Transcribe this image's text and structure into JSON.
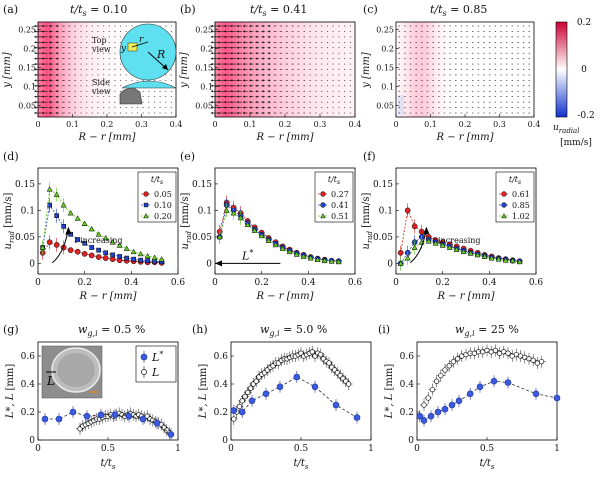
{
  "figure": {
    "colorbar": {
      "labels": [
        "0.2",
        "0",
        "-0.2"
      ],
      "unit_symbol": "u",
      "unit_sub": "radial",
      "unit": "[mm/s]",
      "colors": [
        "#cc0033",
        "#ffffff",
        "#1133cc"
      ],
      "range": [
        -0.2,
        0.2
      ]
    }
  },
  "chart_data": [
    {
      "id": "a",
      "type": "heatmap",
      "panel_label": "(a)",
      "title": "t/t_s = 0.10",
      "title_prefix": "t/t",
      "title_sub": "s",
      "title_value": " = 0.10",
      "xlabel": "R − r [mm]",
      "ylabel": "y [mm]",
      "xlim": [
        0,
        0.4
      ],
      "ylim": [
        0.02,
        0.27
      ],
      "xticks": [
        0,
        0.1,
        0.2,
        0.3,
        0.4
      ],
      "xtick_labels": [
        "0",
        "0.1",
        "0.2",
        "0.3",
        "0.4"
      ],
      "yticks": [
        0.05,
        0.1,
        0.15,
        0.2,
        0.25
      ],
      "ytick_labels": [
        "0.05",
        "0.1",
        "0.15",
        "0.2",
        "0.25"
      ],
      "peak": 0.85,
      "extent": 0.1,
      "has_blue": false,
      "inset": {
        "top_label": "Top view",
        "top_label_1": "Top",
        "top_label_2": "view",
        "side_label_1": "Side",
        "side_label_2": "view",
        "y_label": "y",
        "r_label": "r",
        "R_label": "R"
      }
    },
    {
      "id": "b",
      "type": "heatmap",
      "panel_label": "(b)",
      "title": "t/t_s = 0.41",
      "title_prefix": "t/t",
      "title_sub": "s",
      "title_value": " = 0.41",
      "xlabel": "R − r [mm]",
      "ylabel": "y [mm]",
      "xlim": [
        0,
        0.4
      ],
      "ylim": [
        0.02,
        0.27
      ],
      "xticks": [
        0,
        0.1,
        0.2,
        0.3,
        0.4
      ],
      "xtick_labels": [
        "0",
        "0.1",
        "0.2",
        "0.3",
        "0.4"
      ],
      "yticks": [
        0.05,
        0.1,
        0.15,
        0.2,
        0.25
      ],
      "ytick_labels": [
        "0.05",
        "0.1",
        "0.15",
        "0.2",
        "0.25"
      ],
      "peak": 0.8,
      "extent": 0.25,
      "has_blue": false
    },
    {
      "id": "c",
      "type": "heatmap",
      "panel_label": "(c)",
      "title": "t/t_s = 0.85",
      "title_prefix": "t/t",
      "title_sub": "s",
      "title_value": " = 0.85",
      "xlabel": "R − r [mm]",
      "ylabel": "y [mm]",
      "xlim": [
        0,
        0.4
      ],
      "ylim": [
        0.02,
        0.27
      ],
      "xticks": [
        0,
        0.1,
        0.2,
        0.3,
        0.4
      ],
      "xtick_labels": [
        "0",
        "0.1",
        "0.2",
        "0.3",
        "0.4"
      ],
      "yticks": [
        0.05,
        0.1,
        0.15,
        0.2,
        0.25
      ],
      "ytick_labels": [
        "0.05",
        "0.1",
        "0.15",
        "0.2",
        "0.25"
      ],
      "peak": 0.25,
      "extent": 0.06,
      "center": 0.07,
      "has_blue": true
    },
    {
      "id": "d",
      "type": "line",
      "panel_label": "(d)",
      "xlabel": "R − r [mm]",
      "ylabel": "u_rad [mm/s]",
      "ylabel_sym": "u",
      "ylabel_sub": "rad",
      "ylabel_unit": "[mm/s]",
      "xlim": [
        0,
        0.6
      ],
      "ylim": [
        -0.02,
        0.18
      ],
      "xticks": [
        0,
        0.2,
        0.4,
        0.6
      ],
      "xtick_labels": [
        "0",
        "0.2",
        "0.4",
        "0.6"
      ],
      "yticks": [
        0,
        0.05,
        0.1,
        0.15
      ],
      "ytick_labels": [
        "0",
        "0.05",
        "0.1",
        "0.15"
      ],
      "legend_title": "t/t_s",
      "legend_title_main": "t/t",
      "legend_title_sub": "s",
      "annotation": "t increasing",
      "annotation_sym": "t",
      "annotation_text": " increasing",
      "x": [
        0.02,
        0.05,
        0.08,
        0.11,
        0.14,
        0.17,
        0.2,
        0.23,
        0.26,
        0.29,
        0.32,
        0.35,
        0.38,
        0.41,
        0.44,
        0.47,
        0.5,
        0.53
      ],
      "series": [
        {
          "name": "0.05",
          "color": "#dd2222",
          "marker": "circle",
          "values": [
            0.02,
            0.04,
            0.035,
            0.03,
            0.025,
            0.022,
            0.018,
            0.015,
            0.012,
            0.01,
            0.008,
            0.006,
            0.005,
            0.004,
            0.003,
            0.002,
            0.002,
            0.001
          ]
        },
        {
          "name": "0.10",
          "color": "#2244cc",
          "marker": "square",
          "values": [
            0.03,
            0.11,
            0.09,
            0.07,
            0.055,
            0.045,
            0.038,
            0.03,
            0.025,
            0.02,
            0.016,
            0.013,
            0.01,
            0.008,
            0.006,
            0.005,
            0.004,
            0.003
          ]
        },
        {
          "name": "0.20",
          "color": "#66cc22",
          "marker": "triangle",
          "values": [
            0.03,
            0.14,
            0.13,
            0.11,
            0.095,
            0.085,
            0.075,
            0.065,
            0.055,
            0.048,
            0.04,
            0.034,
            0.028,
            0.022,
            0.018,
            0.014,
            0.011,
            0.008
          ]
        }
      ]
    },
    {
      "id": "e",
      "type": "line",
      "panel_label": "(e)",
      "xlabel": "R − r [mm]",
      "ylabel": "u_rad [mm/s]",
      "ylabel_sym": "u",
      "ylabel_sub": "rad",
      "ylabel_unit": "[mm/s]",
      "xlim": [
        0,
        0.6
      ],
      "ylim": [
        -0.02,
        0.18
      ],
      "xticks": [
        0,
        0.2,
        0.4,
        0.6
      ],
      "xtick_labels": [
        "0",
        "0.2",
        "0.4",
        "0.6"
      ],
      "yticks": [
        0,
        0.05,
        0.1,
        0.15
      ],
      "ytick_labels": [
        "0",
        "0.05",
        "0.1",
        "0.15"
      ],
      "legend_title": "t/t_s",
      "legend_title_main": "t/t",
      "legend_title_sub": "s",
      "annotation": "L*",
      "annotation_sym": "L",
      "annotation_sup": "*",
      "annotation_value": 0.28,
      "x": [
        0.02,
        0.05,
        0.08,
        0.11,
        0.14,
        0.17,
        0.2,
        0.23,
        0.26,
        0.29,
        0.32,
        0.35,
        0.38,
        0.41,
        0.44,
        0.47,
        0.5,
        0.53
      ],
      "series": [
        {
          "name": "0.27",
          "color": "#dd2222",
          "marker": "circle",
          "values": [
            0.06,
            0.115,
            0.105,
            0.095,
            0.08,
            0.068,
            0.058,
            0.048,
            0.04,
            0.032,
            0.026,
            0.02,
            0.016,
            0.012,
            0.009,
            0.007,
            0.005,
            0.004
          ]
        },
        {
          "name": "0.41",
          "color": "#2244cc",
          "marker": "circle",
          "values": [
            0.05,
            0.11,
            0.1,
            0.09,
            0.076,
            0.064,
            0.054,
            0.045,
            0.037,
            0.03,
            0.024,
            0.019,
            0.015,
            0.011,
            0.008,
            0.006,
            0.005,
            0.004
          ]
        },
        {
          "name": "0.51",
          "color": "#66cc22",
          "marker": "triangle",
          "values": [
            0.05,
            0.1,
            0.095,
            0.086,
            0.073,
            0.062,
            0.052,
            0.043,
            0.035,
            0.028,
            0.022,
            0.017,
            0.013,
            0.01,
            0.007,
            0.005,
            0.004,
            0.003
          ]
        }
      ]
    },
    {
      "id": "f",
      "type": "line",
      "panel_label": "(f)",
      "xlabel": "R − r [mm]",
      "ylabel": "u_rad [mm/s]",
      "ylabel_sym": "u",
      "ylabel_sub": "rad",
      "ylabel_unit": "[mm/s]",
      "xlim": [
        0,
        0.6
      ],
      "ylim": [
        -0.02,
        0.18
      ],
      "xticks": [
        0,
        0.2,
        0.4,
        0.6
      ],
      "xtick_labels": [
        "0",
        "0.2",
        "0.4",
        "0.6"
      ],
      "yticks": [
        0,
        0.05,
        0.1,
        0.15
      ],
      "ytick_labels": [
        "0",
        "0.05",
        "0.1",
        "0.15"
      ],
      "legend_title": "t/t_s",
      "legend_title_main": "t/t",
      "legend_title_sub": "s",
      "annotation": "t increasing",
      "annotation_sym": "t",
      "annotation_text": " increasing",
      "x": [
        0.02,
        0.05,
        0.08,
        0.11,
        0.14,
        0.17,
        0.2,
        0.23,
        0.26,
        0.29,
        0.32,
        0.35,
        0.38,
        0.41,
        0.44,
        0.47,
        0.5,
        0.53
      ],
      "series": [
        {
          "name": "0.61",
          "color": "#dd2222",
          "marker": "circle",
          "values": [
            0.02,
            0.1,
            0.07,
            0.06,
            0.05,
            0.044,
            0.04,
            0.036,
            0.032,
            0.028,
            0.024,
            0.02,
            0.016,
            0.013,
            0.01,
            0.008,
            0.006,
            0.004
          ]
        },
        {
          "name": "0.85",
          "color": "#2244cc",
          "marker": "circle",
          "values": [
            0.0,
            0.02,
            0.04,
            0.05,
            0.045,
            0.04,
            0.036,
            0.032,
            0.028,
            0.024,
            0.02,
            0.017,
            0.014,
            0.011,
            0.009,
            0.007,
            0.005,
            0.004
          ]
        },
        {
          "name": "1.02",
          "color": "#66cc22",
          "marker": "triangle",
          "values": [
            0.0,
            0.01,
            0.03,
            0.04,
            0.042,
            0.038,
            0.034,
            0.03,
            0.026,
            0.022,
            0.019,
            0.016,
            0.013,
            0.01,
            0.008,
            0.006,
            0.005,
            0.003
          ]
        }
      ]
    },
    {
      "id": "g",
      "type": "scatter",
      "panel_label": "(g)",
      "title": "w_g,i = 0.5 %",
      "title_prefix": "w",
      "title_sub": "g,i",
      "title_value": " = 0.5 %",
      "xlabel": "t/t_s",
      "xlabel_main": "t/t",
      "xlabel_sub": "s",
      "ylabel": "L*, L [mm]",
      "ylabel_main": "L*, L",
      "ylabel_unit": "[mm]",
      "xlim": [
        0,
        1
      ],
      "ylim": [
        0,
        0.7
      ],
      "xticks": [
        0,
        0.5,
        1
      ],
      "xtick_labels": [
        "0",
        "0.5",
        "1"
      ],
      "yticks": [
        0,
        0.2,
        0.4,
        0.6
      ],
      "ytick_labels": [
        "0",
        "0.2",
        "0.4",
        "0.6"
      ],
      "legend": [
        "L*",
        "L"
      ],
      "legend_main": [
        "L",
        "L"
      ],
      "legend_sup": [
        "*",
        ""
      ],
      "inset_label": "L",
      "Lstar_x": [
        0.05,
        0.15,
        0.25,
        0.35,
        0.45,
        0.55,
        0.65,
        0.75,
        0.85,
        0.95
      ],
      "Lstar_y": [
        0.15,
        0.15,
        0.2,
        0.17,
        0.18,
        0.18,
        0.17,
        0.15,
        0.12,
        0.04
      ],
      "L_x": [
        0.3,
        0.32,
        0.34,
        0.36,
        0.38,
        0.4,
        0.42,
        0.44,
        0.46,
        0.48,
        0.5,
        0.52,
        0.54,
        0.56,
        0.58,
        0.6,
        0.62,
        0.64,
        0.66,
        0.68,
        0.7,
        0.72,
        0.74,
        0.76,
        0.78,
        0.8,
        0.82,
        0.84,
        0.86,
        0.88,
        0.9,
        0.92,
        0.94
      ],
      "L_y": [
        0.08,
        0.1,
        0.11,
        0.12,
        0.13,
        0.14,
        0.15,
        0.15,
        0.16,
        0.17,
        0.17,
        0.18,
        0.17,
        0.18,
        0.19,
        0.18,
        0.17,
        0.18,
        0.19,
        0.18,
        0.17,
        0.18,
        0.17,
        0.16,
        0.17,
        0.15,
        0.14,
        0.13,
        0.12,
        0.11,
        0.09,
        0.07,
        0.05
      ]
    },
    {
      "id": "h",
      "type": "scatter",
      "panel_label": "(h)",
      "title": "w_g,i = 5.0 %",
      "title_prefix": "w",
      "title_sub": "g,i",
      "title_value": " = 5.0 %",
      "xlabel": "t/t_s",
      "xlabel_main": "t/t",
      "xlabel_sub": "s",
      "ylabel": "L*, L [mm]",
      "ylabel_main": "L*, L",
      "ylabel_unit": "[mm]",
      "xlim": [
        0,
        1
      ],
      "ylim": [
        0,
        0.7
      ],
      "xticks": [
        0,
        0.5,
        1
      ],
      "xtick_labels": [
        "0",
        "0.5",
        "1"
      ],
      "yticks": [
        0,
        0.2,
        0.4,
        0.6
      ],
      "ytick_labels": [
        "0",
        "0.2",
        "0.4",
        "0.6"
      ],
      "Lstar_x": [
        0.02,
        0.08,
        0.15,
        0.25,
        0.35,
        0.47,
        0.6,
        0.75,
        0.9
      ],
      "Lstar_y": [
        0.21,
        0.2,
        0.28,
        0.33,
        0.38,
        0.45,
        0.38,
        0.25,
        0.16
      ],
      "L_x": [
        0.02,
        0.04,
        0.06,
        0.08,
        0.1,
        0.12,
        0.14,
        0.16,
        0.18,
        0.2,
        0.22,
        0.24,
        0.26,
        0.28,
        0.3,
        0.32,
        0.34,
        0.36,
        0.38,
        0.4,
        0.42,
        0.44,
        0.46,
        0.48,
        0.5,
        0.52,
        0.54,
        0.56,
        0.58,
        0.6,
        0.62,
        0.64,
        0.66,
        0.68,
        0.7,
        0.72,
        0.74,
        0.76,
        0.78,
        0.8,
        0.82,
        0.84
      ],
      "L_y": [
        0.15,
        0.2,
        0.24,
        0.28,
        0.31,
        0.34,
        0.37,
        0.4,
        0.42,
        0.45,
        0.47,
        0.48,
        0.5,
        0.52,
        0.53,
        0.55,
        0.55,
        0.57,
        0.58,
        0.58,
        0.59,
        0.6,
        0.6,
        0.61,
        0.62,
        0.6,
        0.61,
        0.62,
        0.63,
        0.6,
        0.62,
        0.61,
        0.58,
        0.56,
        0.55,
        0.52,
        0.5,
        0.48,
        0.46,
        0.44,
        0.42,
        0.4
      ]
    },
    {
      "id": "i",
      "type": "scatter",
      "panel_label": "(i)",
      "title": "w_g,i = 25 %",
      "title_prefix": "w",
      "title_sub": "g,i",
      "title_value": " = 25 %",
      "xlabel": "t/t_s",
      "xlabel_main": "t/t",
      "xlabel_sub": "s",
      "ylabel": "L*, L [mm]",
      "ylabel_main": "L*, L",
      "ylabel_unit": "[mm]",
      "xlim": [
        0,
        1
      ],
      "ylim": [
        0,
        0.7
      ],
      "xticks": [
        0,
        0.5,
        1
      ],
      "xtick_labels": [
        "0",
        "0.5",
        "1"
      ],
      "yticks": [
        0,
        0.2,
        0.4,
        0.6
      ],
      "ytick_labels": [
        "0",
        "0.2",
        "0.4",
        "0.6"
      ],
      "Lstar_x": [
        0.02,
        0.05,
        0.1,
        0.15,
        0.2,
        0.25,
        0.3,
        0.38,
        0.45,
        0.55,
        0.65,
        0.85,
        1.0
      ],
      "Lstar_y": [
        0.17,
        0.14,
        0.17,
        0.2,
        0.22,
        0.25,
        0.28,
        0.33,
        0.38,
        0.42,
        0.41,
        0.33,
        0.3
      ],
      "L_x": [
        0.05,
        0.08,
        0.11,
        0.14,
        0.17,
        0.2,
        0.23,
        0.26,
        0.29,
        0.32,
        0.35,
        0.38,
        0.41,
        0.44,
        0.47,
        0.5,
        0.53,
        0.56,
        0.59,
        0.62,
        0.65,
        0.68,
        0.71,
        0.74,
        0.77,
        0.8,
        0.83,
        0.86,
        0.89
      ],
      "L_y": [
        0.25,
        0.3,
        0.36,
        0.42,
        0.46,
        0.5,
        0.53,
        0.56,
        0.58,
        0.6,
        0.61,
        0.62,
        0.62,
        0.63,
        0.63,
        0.64,
        0.63,
        0.64,
        0.62,
        0.63,
        0.62,
        0.6,
        0.61,
        0.6,
        0.59,
        0.58,
        0.57,
        0.55,
        0.56
      ]
    }
  ]
}
